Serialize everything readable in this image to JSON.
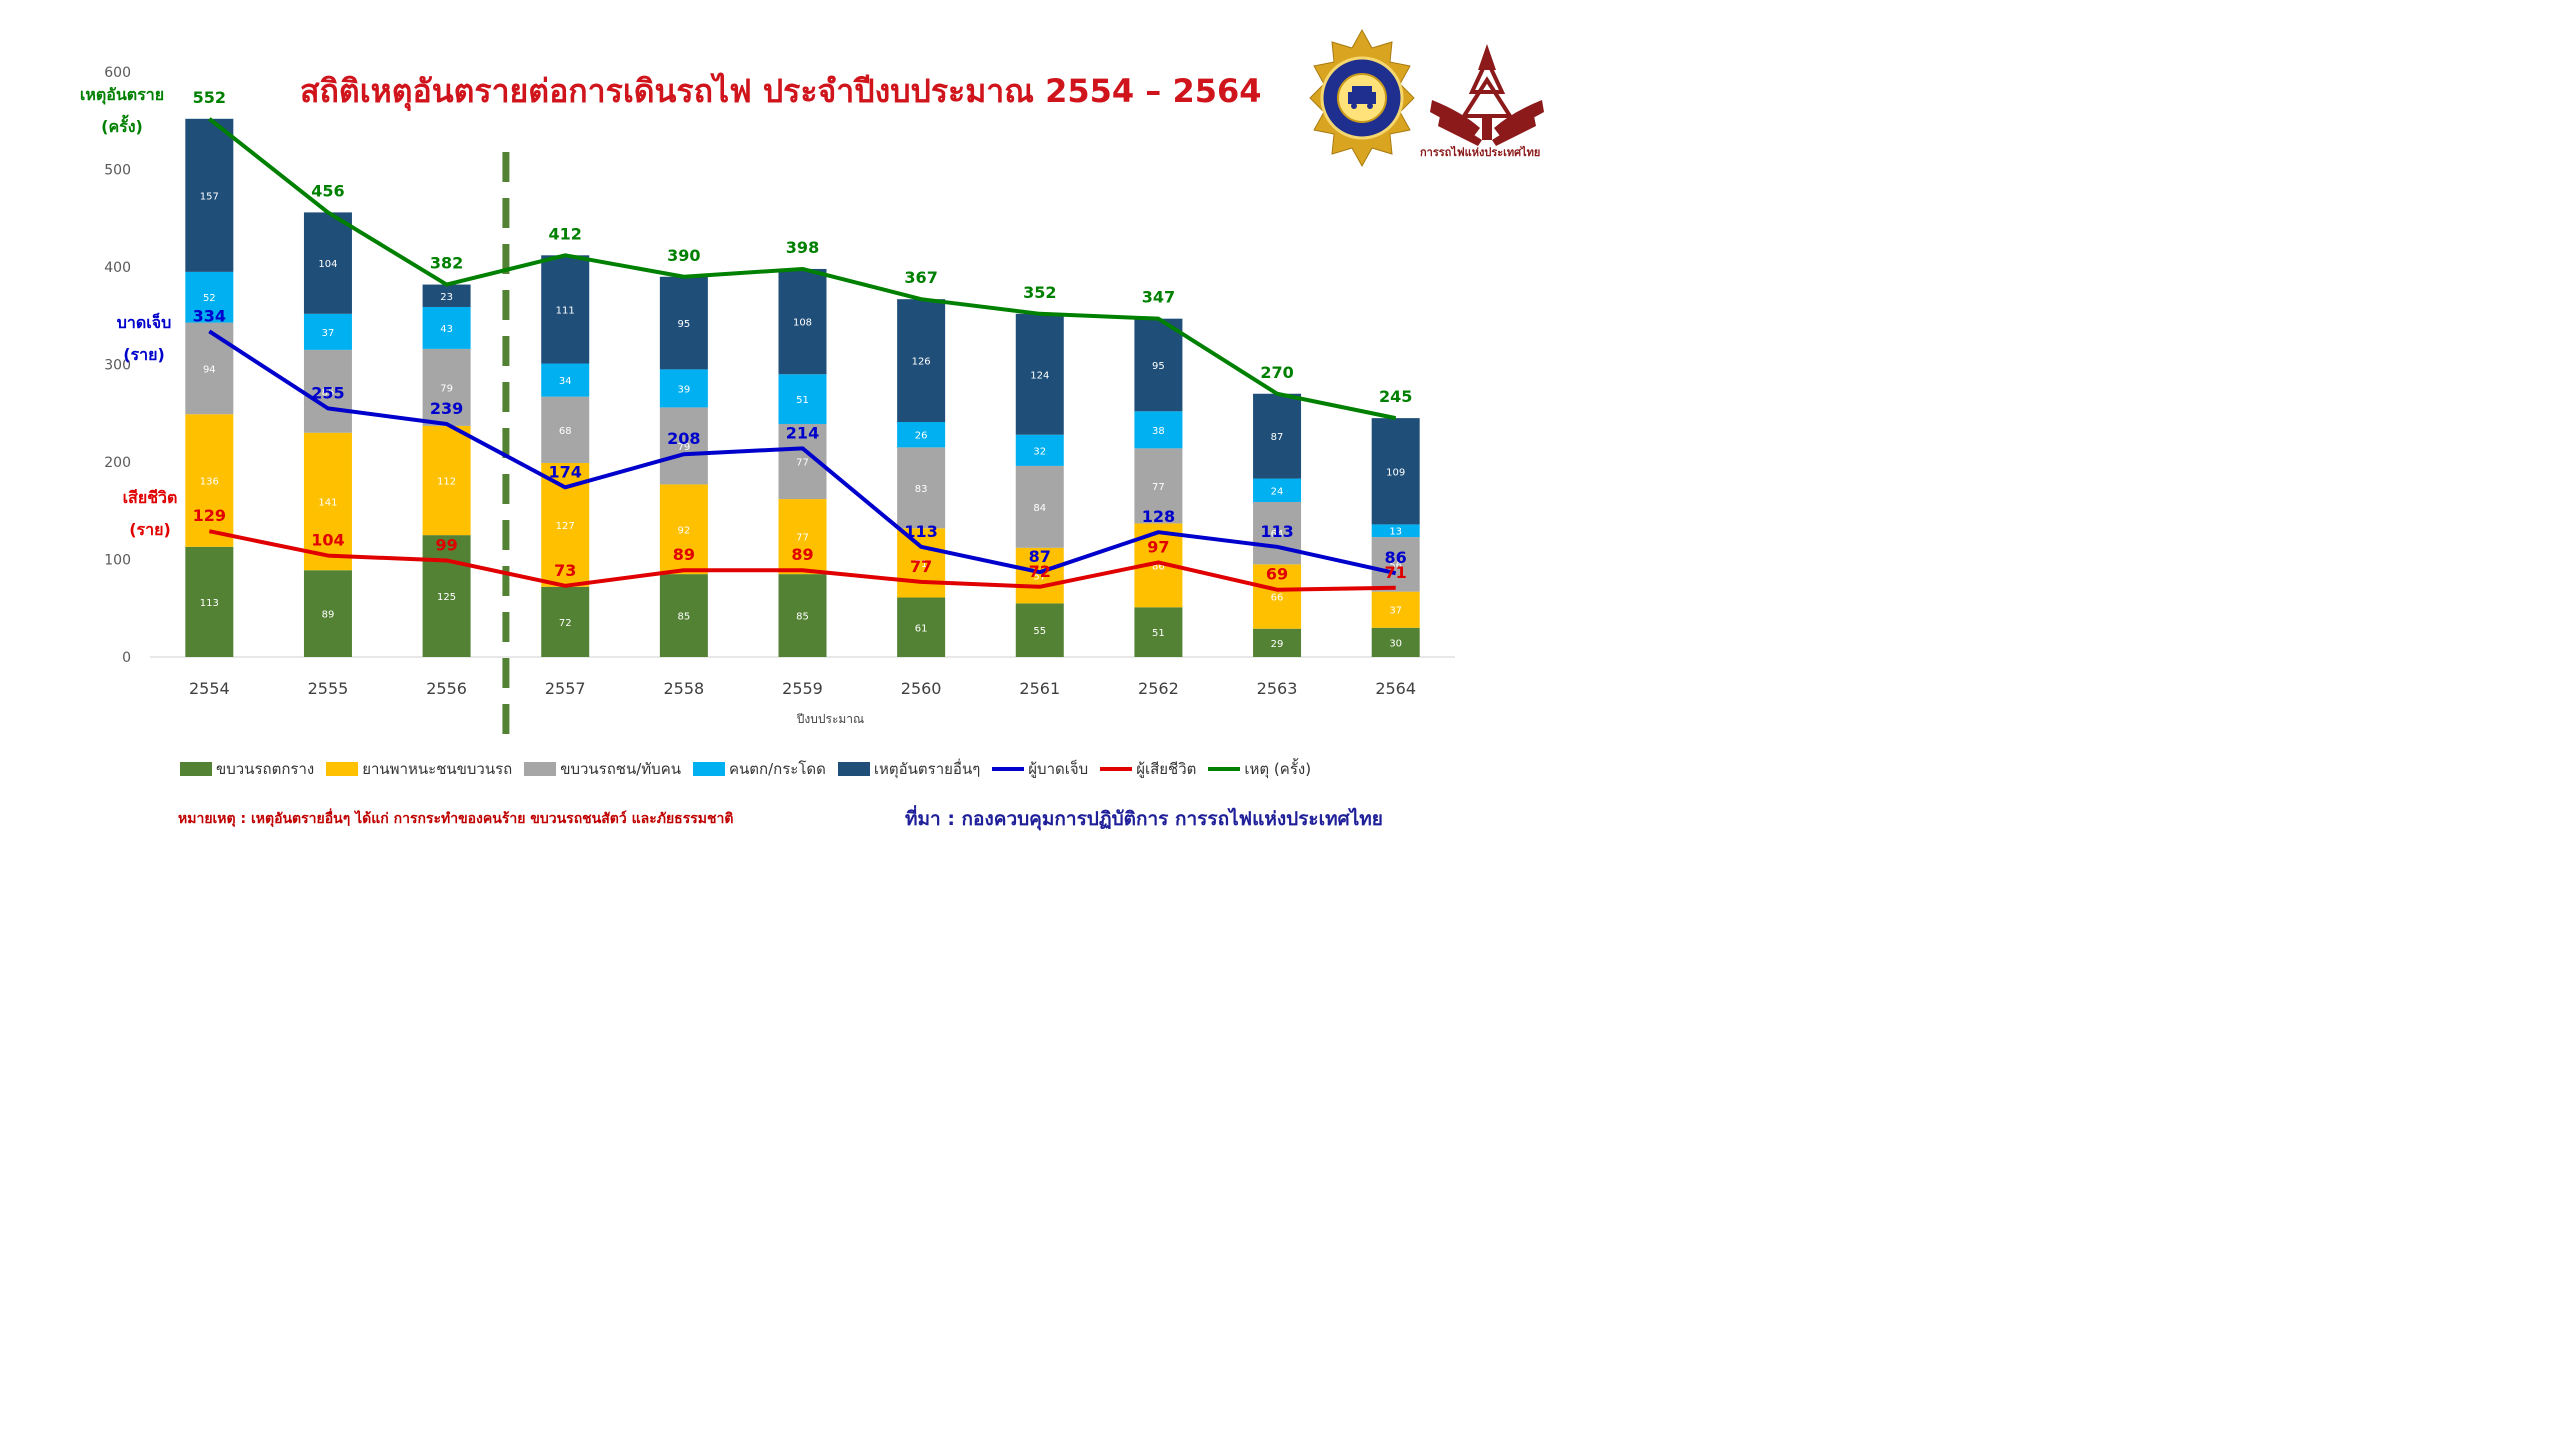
{
  "title": "สถิติเหตุอันตรายต่อการเดินรถไฟ ประจำปีงบประมาณ 2554 – 2564",
  "note": "หมายเหตุ : เหตุอันตรายอื่นๆ ได้แก่ การกระทำของคนร้าย  ขบวนรถชนสัตว์ และภัยธรรมชาติ",
  "source": "ที่มา : กองควบคุมการปฏิบัติการ การรถไฟแห่งประเทศไทย",
  "logo_text": "การรถไฟแห่งประเทศไทย",
  "axis_side_labels": {
    "incidents": [
      "เหตุอันตราย",
      "(ครั้ง)"
    ],
    "injured": [
      "บาดเจ็บ",
      "(ราย)"
    ],
    "deaths": [
      "เสียชีวิต",
      "(ราย)"
    ]
  },
  "colors": {
    "derail": "#548235",
    "vehicle": "#ffc000",
    "collision": "#a6a6a6",
    "fall": "#00b0f0",
    "other": "#1f4e79",
    "injured": "#0000cc",
    "deaths": "#e00000",
    "incidents": "#008000"
  },
  "chart_data": {
    "type": "bar",
    "stacked": true,
    "categories": [
      "2554",
      "2555",
      "2556",
      "2557",
      "2558",
      "2559",
      "2560",
      "2561",
      "2562",
      "2563",
      "2564"
    ],
    "xlabel": "ปีงบประมาณ",
    "ylim": [
      0,
      600
    ],
    "yticks": [
      0,
      100,
      200,
      300,
      400,
      500,
      600
    ],
    "grid": false,
    "legend_position": "bottom",
    "divider_after_category": "2556",
    "series": [
      {
        "name": "ขบวนรถตกราง",
        "key": "derail",
        "values": [
          113,
          89,
          125,
          72,
          85,
          85,
          61,
          55,
          51,
          29,
          30
        ]
      },
      {
        "name": "ยานพาหนะชนขบวนรถ",
        "key": "vehicle",
        "values": [
          136,
          141,
          112,
          127,
          92,
          77,
          71,
          57,
          86,
          66,
          37
        ]
      },
      {
        "name": "ขบวนรถชน/ทับคน",
        "key": "collision",
        "values": [
          94,
          85,
          79,
          68,
          79,
          77,
          83,
          84,
          77,
          64,
          56
        ]
      },
      {
        "name": "คนตก/กระโดด",
        "key": "fall",
        "values": [
          52,
          37,
          43,
          34,
          39,
          51,
          26,
          32,
          38,
          24,
          13
        ]
      },
      {
        "name": "เหตุอันตรายอื่นๆ",
        "key": "other",
        "values": [
          157,
          104,
          23,
          111,
          95,
          108,
          126,
          124,
          95,
          87,
          109
        ]
      }
    ],
    "lines": [
      {
        "name": "ผู้บาดเจ็บ",
        "key": "injured",
        "values": [
          334,
          255,
          239,
          174,
          208,
          214,
          113,
          87,
          128,
          113,
          86
        ]
      },
      {
        "name": "ผู้เสียชีวิต",
        "key": "deaths",
        "values": [
          129,
          104,
          99,
          73,
          89,
          89,
          77,
          72,
          97,
          69,
          71
        ]
      },
      {
        "name": "เหตุ (ครั้ง)",
        "key": "incidents",
        "values": [
          552,
          456,
          382,
          412,
          390,
          398,
          367,
          352,
          347,
          270,
          245
        ]
      }
    ]
  }
}
